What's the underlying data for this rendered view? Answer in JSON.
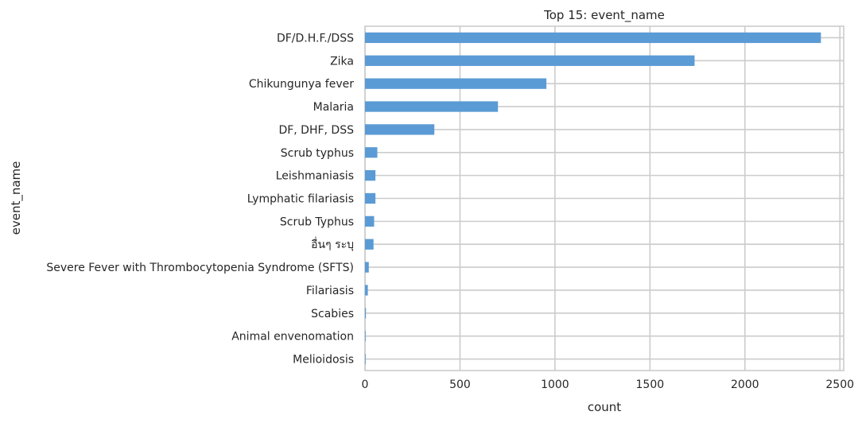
{
  "chart_data": {
    "type": "bar",
    "orientation": "horizontal",
    "title": "Top 15: event_name",
    "xlabel": "count",
    "ylabel": "event_name",
    "xlim": [
      0,
      2520
    ],
    "x_ticks": [
      0,
      500,
      1000,
      1500,
      2000,
      2500
    ],
    "grid": true,
    "bar_color": "#5b9bd5",
    "grid_color": "#cccccc",
    "categories": [
      "DF/D.H.F./DSS",
      "Zika",
      "Chikungunya fever",
      "Malaria",
      "DF, DHF, DSS",
      "Scrub typhus",
      "Leishmaniasis",
      "Lymphatic filariasis",
      "Scrub Typhus",
      "อื่นๆ ระบุ",
      "Severe Fever with Thrombocytopenia Syndrome (SFTS)",
      "Filariasis",
      "Scabies",
      "Animal envenomation",
      "Melioidosis"
    ],
    "values": [
      2400,
      1735,
      955,
      700,
      365,
      65,
      55,
      55,
      48,
      45,
      20,
      15,
      5,
      3,
      2
    ]
  }
}
